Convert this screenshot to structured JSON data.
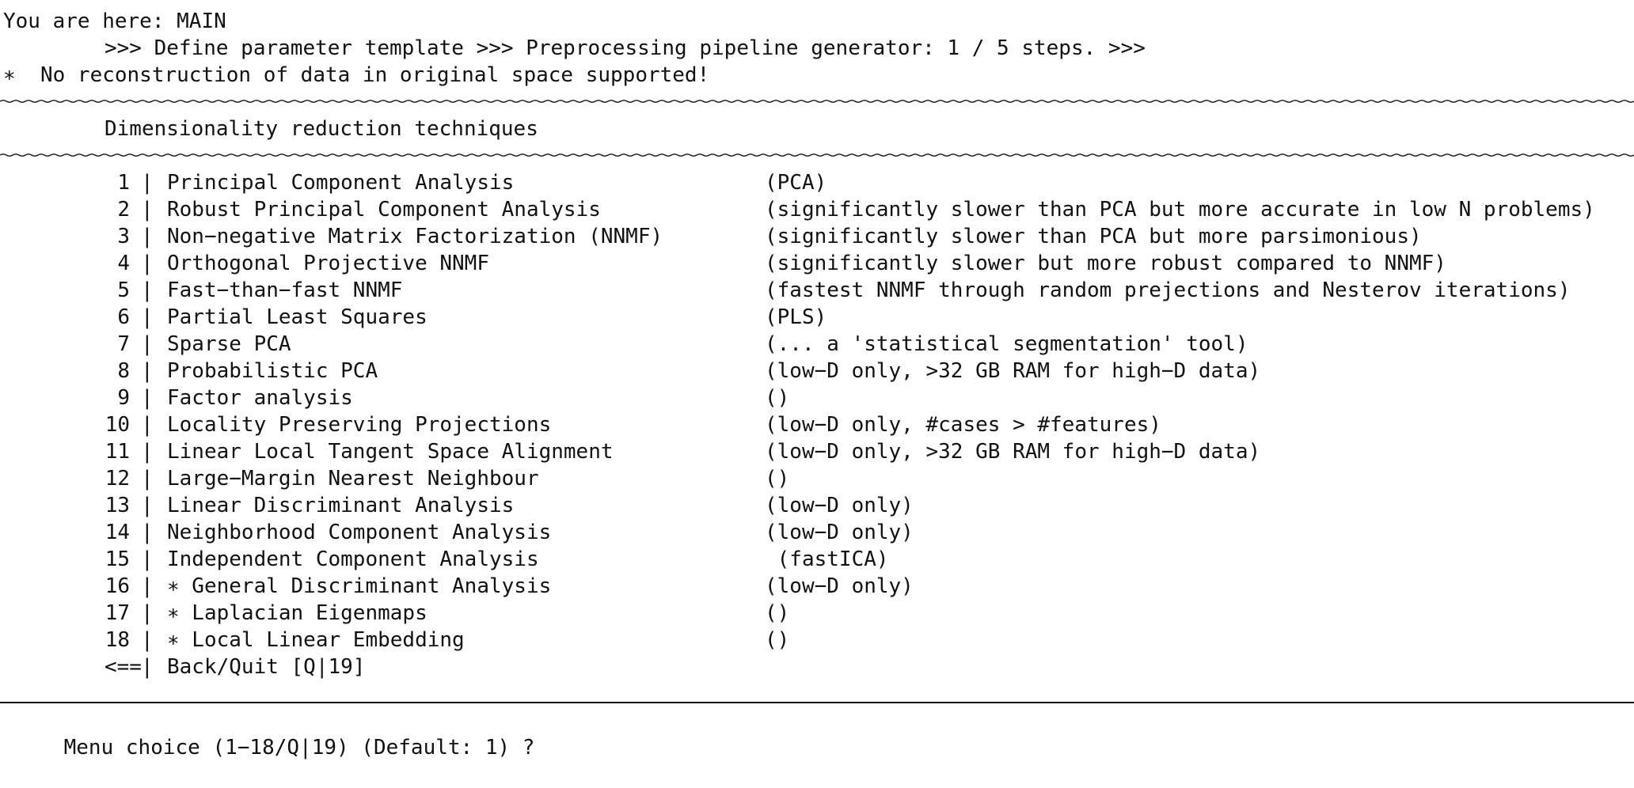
{
  "header": {
    "location": "You are here: MAIN",
    "breadcrumb": ">>> Define parameter template >>> Preprocessing pipeline generator: 1 / 5 steps. >>>",
    "footnote": "∗  No reconstruction of data in original space supported!"
  },
  "section": {
    "title": "Dimensionality reduction techniques"
  },
  "menu": {
    "separator": "|",
    "items": [
      {
        "num": "1",
        "label": "Principal Component Analysis",
        "note": "(PCA)"
      },
      {
        "num": "2",
        "label": "Robust Principal Component Analysis",
        "note": "(significantly slower than PCA but more accurate in low N problems)"
      },
      {
        "num": "3",
        "label": "Non−negative Matrix Factorization (NNMF)",
        "note": "(significantly slower than PCA but more parsimonious)"
      },
      {
        "num": "4",
        "label": "Orthogonal Projective NNMF",
        "note": "(significantly slower but more robust compared to NNMF)"
      },
      {
        "num": "5",
        "label": "Fast−than−fast NNMF",
        "note": "(fastest NNMF through random prejections and Nesterov iterations)"
      },
      {
        "num": "6",
        "label": "Partial Least Squares",
        "note": "(PLS)"
      },
      {
        "num": "7",
        "label": "Sparse PCA",
        "note": "(... a 'statistical segmentation' tool)"
      },
      {
        "num": "8",
        "label": "Probabilistic PCA",
        "note": "(low−D only, >32 GB RAM for high−D data)"
      },
      {
        "num": "9",
        "label": "Factor analysis",
        "note": "()"
      },
      {
        "num": "10",
        "label": "Locality Preserving Projections",
        "note": "(low−D only, #cases > #features)"
      },
      {
        "num": "11",
        "label": "Linear Local Tangent Space Alignment",
        "note": "(low−D only, >32 GB RAM for high−D data)"
      },
      {
        "num": "12",
        "label": "Large−Margin Nearest Neighbour",
        "note": "()"
      },
      {
        "num": "13",
        "label": "Linear Discriminant Analysis",
        "note": "(low−D only)"
      },
      {
        "num": "14",
        "label": "Neighborhood Component Analysis",
        "note": "(low−D only)"
      },
      {
        "num": "15",
        "label": "Independent Component Analysis",
        "note": " (fastICA)"
      },
      {
        "num": "16",
        "label": "∗ General Discriminant Analysis",
        "note": "(low−D only)"
      },
      {
        "num": "17",
        "label": "∗ Laplacian Eigenmaps",
        "note": "()"
      },
      {
        "num": "18",
        "label": "∗ Local Linear Embedding",
        "note": "()"
      }
    ],
    "back": {
      "arrow": "<==",
      "label": "Back/Quit [Q|19]"
    }
  },
  "prompt": {
    "text": "Menu choice (1−18/Q|19) (Default: 1) ?"
  }
}
